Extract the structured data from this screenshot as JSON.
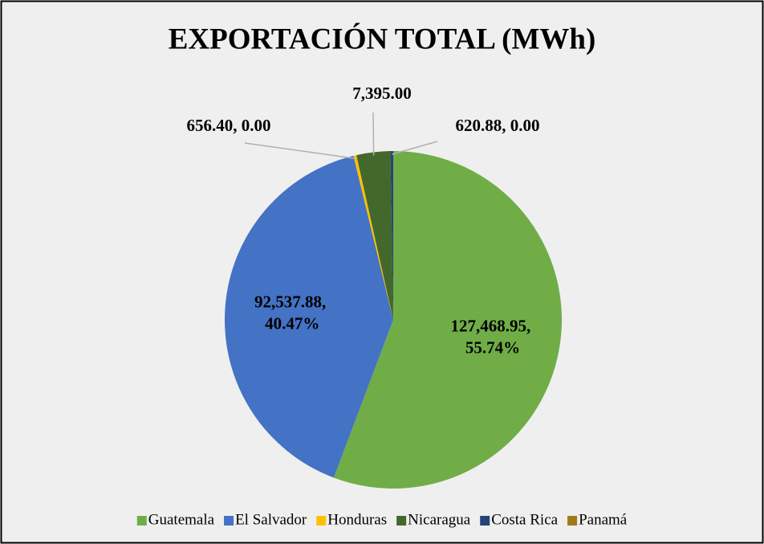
{
  "chart_data": {
    "type": "pie",
    "title": "EXPORTACIÓN TOTAL (MWh)",
    "categories": [
      "Guatemala",
      "El Salvador",
      "Honduras",
      "Nicaragua",
      "Costa Rica",
      "Panamá"
    ],
    "values": [
      127468.95,
      92537.88,
      656.4,
      7395.0,
      620.88,
      0
    ],
    "value_labels": [
      "127,468.95, 55.74%",
      "92,537.88, 40.47%",
      "656.40, 0.00",
      "7,395.00",
      "620.88, 0.00",
      null
    ],
    "colors": [
      "#70ad47",
      "#4472c4",
      "#ffc000",
      "#43682b",
      "#264478",
      "#9e7b17"
    ],
    "legend": "bottom"
  }
}
